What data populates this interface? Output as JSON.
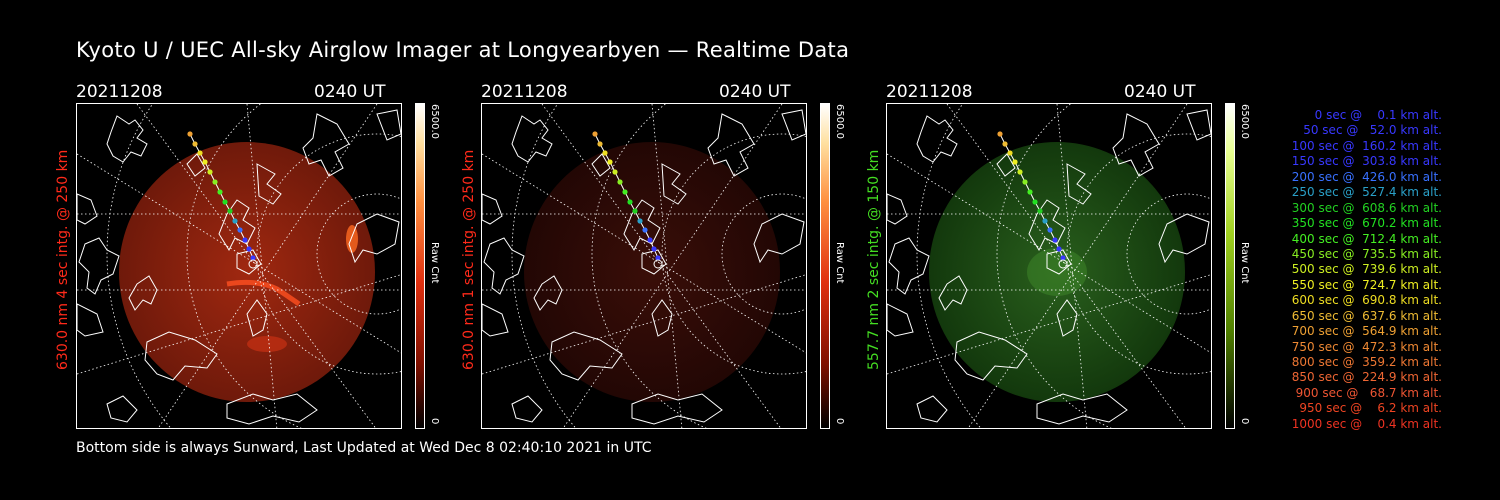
{
  "title": "Kyoto U / UEC All-sky Airglow Imager at Longyearbyen — Realtime Data",
  "footer": "Bottom side is always Sunward, Last Updated at Wed Dec  8 02:40:10 2021 in UTC",
  "panels": [
    {
      "date": "20211208",
      "time": "0240 UT",
      "side_label": "630.0 nm 4 sec intg. @ 250 km",
      "side_color": "#ff2a1a",
      "colorbar_max": "6500.0",
      "colorbar_min": "0",
      "colorbar_unit": "Raw Cnt",
      "emission": "red",
      "intensity": "bright"
    },
    {
      "date": "20211208",
      "time": "0240 UT",
      "side_label": "630.0 nm 1 sec intg. @ 250 km",
      "side_color": "#ff2a1a",
      "colorbar_max": "6500.0",
      "colorbar_min": "0",
      "colorbar_unit": "Raw Cnt",
      "emission": "red",
      "intensity": "dim"
    },
    {
      "date": "20211208",
      "time": "0240 UT",
      "side_label": "557.7 nm 2 sec intg. @ 150 km",
      "side_color": "#44dd22",
      "colorbar_max": "6500.0",
      "colorbar_min": "0",
      "colorbar_unit": "Raw Cnt",
      "emission": "green",
      "intensity": "dim"
    }
  ],
  "legend": [
    {
      "text": "   0 sec @    0.1 km alt.",
      "color": "#3838ff"
    },
    {
      "text": "  50 sec @   52.0 km alt.",
      "color": "#3838ff"
    },
    {
      "text": " 100 sec @  160.2 km alt.",
      "color": "#3838ff"
    },
    {
      "text": " 150 sec @  303.8 km alt.",
      "color": "#3838ff"
    },
    {
      "text": " 200 sec @  426.0 km alt.",
      "color": "#3870ff"
    },
    {
      "text": " 250 sec @  527.4 km alt.",
      "color": "#2aa0c8"
    },
    {
      "text": " 300 sec @  608.6 km alt.",
      "color": "#22d022"
    },
    {
      "text": " 350 sec @  670.2 km alt.",
      "color": "#22e022"
    },
    {
      "text": " 400 sec @  712.4 km alt.",
      "color": "#44ee22"
    },
    {
      "text": " 450 sec @  735.5 km alt.",
      "color": "#88ee22"
    },
    {
      "text": " 500 sec @  739.6 km alt.",
      "color": "#ccee22"
    },
    {
      "text": " 550 sec @  724.7 km alt.",
      "color": "#eeee22"
    },
    {
      "text": " 600 sec @  690.8 km alt.",
      "color": "#eedd22"
    },
    {
      "text": " 650 sec @  637.6 km alt.",
      "color": "#eebb33"
    },
    {
      "text": " 700 sec @  564.9 km alt.",
      "color": "#eea033"
    },
    {
      "text": " 750 sec @  472.3 km alt.",
      "color": "#ee8833"
    },
    {
      "text": " 800 sec @  359.2 km alt.",
      "color": "#ee7733"
    },
    {
      "text": " 850 sec @  224.9 km alt.",
      "color": "#ee6633"
    },
    {
      "text": " 900 sec @   68.7 km alt.",
      "color": "#ee5533"
    },
    {
      "text": " 950 sec @    6.2 km alt.",
      "color": "#ee4422"
    },
    {
      "text": "1000 sec @    0.4 km alt.",
      "color": "#ee3322"
    }
  ]
}
